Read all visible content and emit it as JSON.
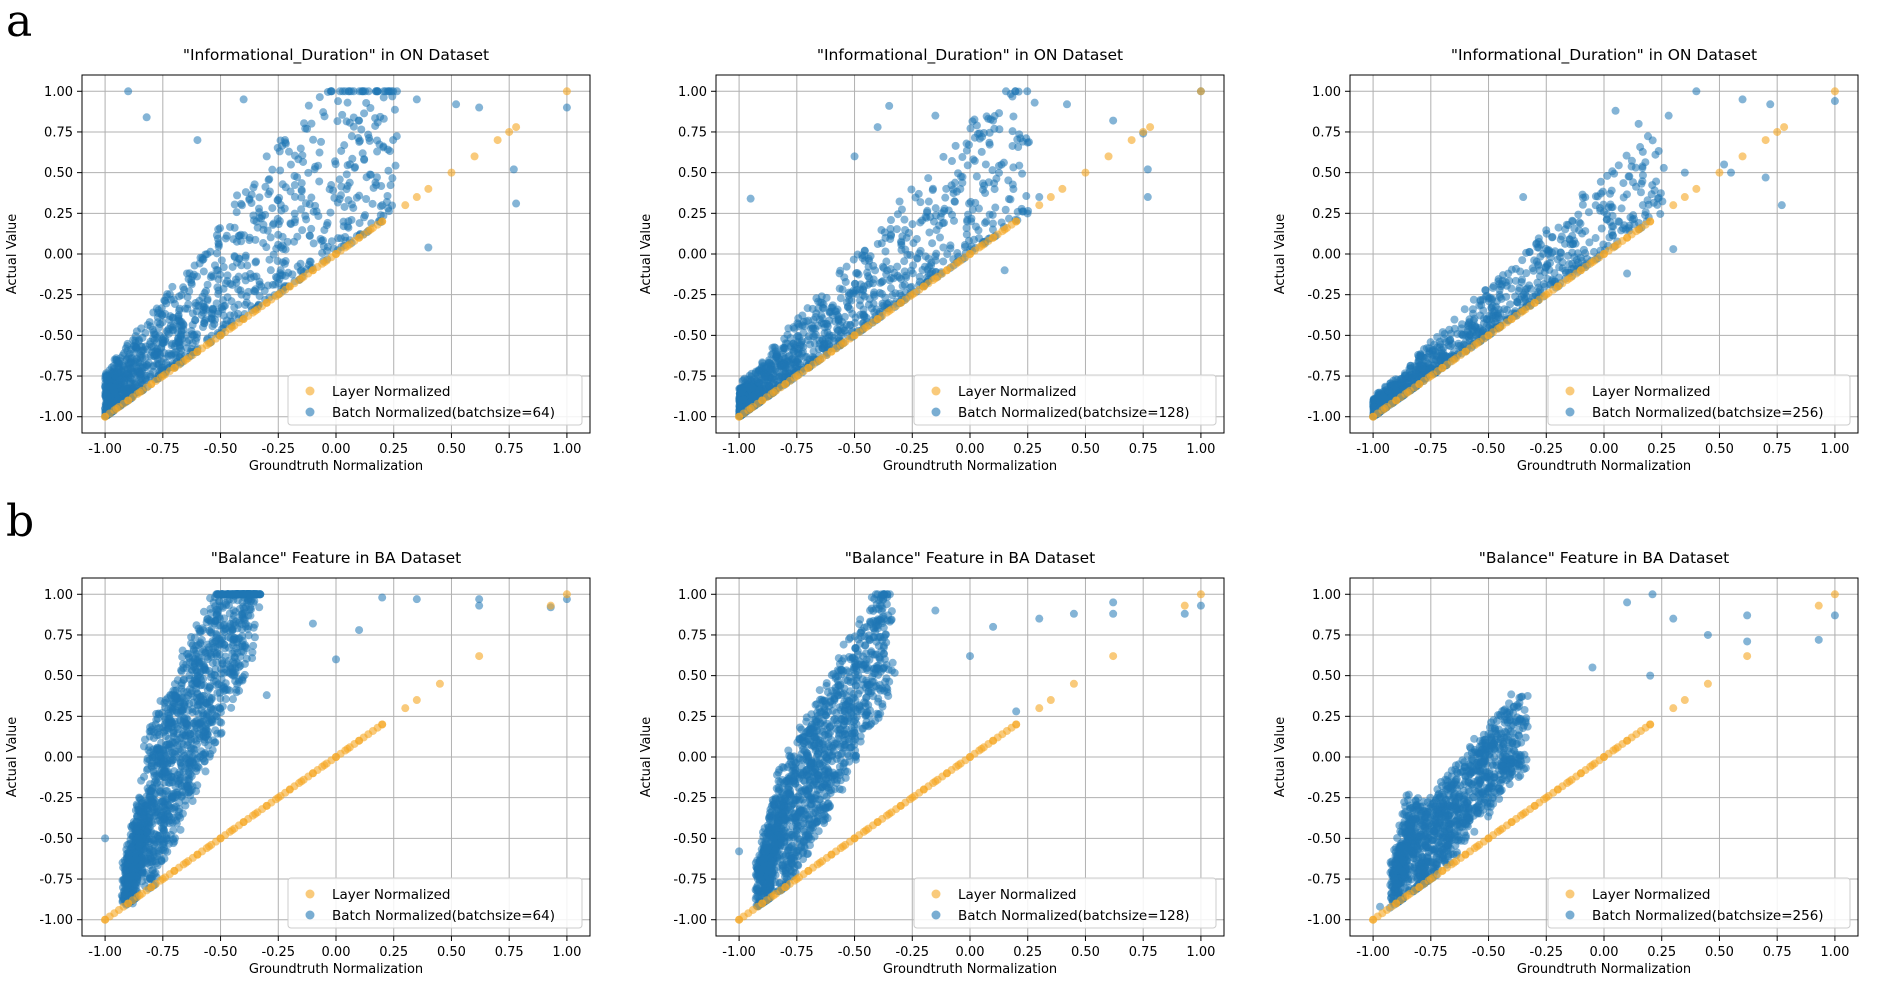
{
  "panel_labels": [
    "a",
    "b"
  ],
  "colors": {
    "layer": "#f5a623",
    "batch": "#1f77b4",
    "grid": "#b0b0b0"
  },
  "chart_data": [
    {
      "type": "scatter",
      "title": "\"Informational_Duration\" in ON Dataset",
      "xlabel": "Groundtruth Normalization",
      "ylabel": "Actual Value",
      "xlim": [
        -1.1,
        1.1
      ],
      "ylim": [
        -1.1,
        1.1
      ],
      "xticks": [
        "-1.00",
        "-0.75",
        "-0.50",
        "-0.25",
        "0.00",
        "0.25",
        "0.50",
        "0.75",
        "1.00"
      ],
      "yticks": [
        "-1.00",
        "-0.75",
        "-0.50",
        "-0.25",
        "0.00",
        "0.25",
        "0.50",
        "0.75",
        "1.00"
      ],
      "grid": true,
      "legend_position": "lower-right",
      "series": [
        {
          "name": "Layer Normalized",
          "kind": "identity",
          "x": [
            -1.0,
            -0.95,
            -0.9,
            -0.85,
            -0.8,
            -0.75,
            -0.7,
            -0.65,
            -0.6,
            -0.55,
            -0.5,
            -0.45,
            -0.4,
            -0.35,
            -0.3,
            -0.25,
            -0.2,
            -0.15,
            -0.1,
            -0.05,
            0.0,
            0.05,
            0.1,
            0.15,
            0.2,
            0.3,
            0.35,
            0.4,
            0.5,
            0.6,
            0.7,
            0.75,
            0.78,
            1.0
          ]
        },
        {
          "name": "Batch Normalized(batchsize=64)",
          "kind": "cloud",
          "spread": 1.0,
          "n": 1300,
          "seed": 11,
          "outliers": [
            [
              -0.9,
              1.0
            ],
            [
              -0.82,
              0.84
            ],
            [
              -0.6,
              0.7
            ],
            [
              -0.4,
              0.95
            ],
            [
              0.05,
              0.93
            ],
            [
              0.1,
              0.82
            ],
            [
              0.35,
              0.95
            ],
            [
              0.52,
              0.92
            ],
            [
              0.62,
              0.9
            ],
            [
              0.77,
              0.52
            ],
            [
              0.78,
              0.31
            ],
            [
              0.4,
              0.04
            ],
            [
              1.0,
              0.9
            ],
            [
              0.2,
              0.3
            ],
            [
              -0.3,
              0.6
            ]
          ]
        }
      ]
    },
    {
      "type": "scatter",
      "title": "\"Informational_Duration\" in ON Dataset",
      "xlabel": "Groundtruth Normalization",
      "ylabel": "Actual Value",
      "xlim": [
        -1.1,
        1.1
      ],
      "ylim": [
        -1.1,
        1.1
      ],
      "xticks": [
        "-1.00",
        "-0.75",
        "-0.50",
        "-0.25",
        "0.00",
        "0.25",
        "0.50",
        "0.75",
        "1.00"
      ],
      "yticks": [
        "-1.00",
        "-0.75",
        "-0.50",
        "-0.25",
        "0.00",
        "0.25",
        "0.50",
        "0.75",
        "1.00"
      ],
      "grid": true,
      "legend_position": "lower-right",
      "series": [
        {
          "name": "Layer Normalized",
          "kind": "identity",
          "x": [
            -1.0,
            -0.95,
            -0.9,
            -0.85,
            -0.8,
            -0.75,
            -0.7,
            -0.65,
            -0.6,
            -0.55,
            -0.5,
            -0.45,
            -0.4,
            -0.35,
            -0.3,
            -0.25,
            -0.2,
            -0.15,
            -0.1,
            -0.05,
            0.0,
            0.05,
            0.1,
            0.15,
            0.2,
            0.3,
            0.35,
            0.4,
            0.5,
            0.6,
            0.7,
            0.75,
            0.78,
            1.0
          ]
        },
        {
          "name": "Batch Normalized(batchsize=128)",
          "kind": "cloud",
          "spread": 0.7,
          "n": 1200,
          "seed": 23,
          "outliers": [
            [
              -0.35,
              0.91
            ],
            [
              -0.4,
              0.78
            ],
            [
              -0.15,
              0.85
            ],
            [
              0.1,
              0.82
            ],
            [
              0.28,
              0.93
            ],
            [
              0.42,
              0.92
            ],
            [
              0.62,
              0.82
            ],
            [
              0.75,
              0.74
            ],
            [
              0.77,
              0.52
            ],
            [
              0.77,
              0.35
            ],
            [
              1.0,
              1.0
            ],
            [
              -0.95,
              0.34
            ],
            [
              0.15,
              -0.1
            ],
            [
              0.3,
              0.35
            ],
            [
              -0.5,
              0.6
            ]
          ]
        }
      ]
    },
    {
      "type": "scatter",
      "title": "\"Informational_Duration\" in ON Dataset",
      "xlabel": "Groundtruth Normalization",
      "ylabel": "Actual Value",
      "xlim": [
        -1.1,
        1.1
      ],
      "ylim": [
        -1.1,
        1.1
      ],
      "xticks": [
        "-1.00",
        "-0.75",
        "-0.50",
        "-0.25",
        "0.00",
        "0.25",
        "0.50",
        "0.75",
        "1.00"
      ],
      "yticks": [
        "-1.00",
        "-0.75",
        "-0.50",
        "-0.25",
        "0.00",
        "0.25",
        "0.50",
        "0.75",
        "1.00"
      ],
      "grid": true,
      "legend_position": "lower-right",
      "series": [
        {
          "name": "Layer Normalized",
          "kind": "identity",
          "x": [
            -1.0,
            -0.95,
            -0.9,
            -0.85,
            -0.8,
            -0.75,
            -0.7,
            -0.65,
            -0.6,
            -0.55,
            -0.5,
            -0.45,
            -0.4,
            -0.35,
            -0.3,
            -0.25,
            -0.2,
            -0.15,
            -0.1,
            -0.05,
            0.0,
            0.05,
            0.1,
            0.15,
            0.2,
            0.3,
            0.35,
            0.4,
            0.5,
            0.6,
            0.7,
            0.75,
            0.78,
            1.0
          ]
        },
        {
          "name": "Batch Normalized(batchsize=256)",
          "kind": "cloud",
          "spread": 0.42,
          "n": 1100,
          "seed": 37,
          "outliers": [
            [
              0.4,
              1.0
            ],
            [
              0.6,
              0.95
            ],
            [
              0.72,
              0.92
            ],
            [
              0.52,
              0.55
            ],
            [
              0.7,
              0.47
            ],
            [
              0.77,
              0.3
            ],
            [
              0.28,
              0.85
            ],
            [
              0.05,
              0.88
            ],
            [
              0.15,
              0.8
            ],
            [
              0.35,
              0.5
            ],
            [
              0.3,
              0.03
            ],
            [
              0.1,
              -0.12
            ],
            [
              1.0,
              0.94
            ],
            [
              -0.35,
              0.35
            ],
            [
              0.55,
              0.5
            ]
          ]
        }
      ]
    },
    {
      "type": "scatter",
      "title": "\"Balance\" Feature in BA Dataset",
      "xlabel": "Groundtruth Normalization",
      "ylabel": "Actual Value",
      "xlim": [
        -1.1,
        1.1
      ],
      "ylim": [
        -1.1,
        1.1
      ],
      "xticks": [
        "-1.00",
        "-0.75",
        "-0.50",
        "-0.25",
        "0.00",
        "0.25",
        "0.50",
        "0.75",
        "1.00"
      ],
      "yticks": [
        "-1.00",
        "-0.75",
        "-0.50",
        "-0.25",
        "0.00",
        "0.25",
        "0.50",
        "0.75",
        "1.00"
      ],
      "grid": true,
      "legend_position": "lower-right",
      "series": [
        {
          "name": "Layer Normalized",
          "kind": "identity",
          "x": [
            -1.0,
            -0.9,
            -0.85,
            -0.8,
            -0.75,
            -0.7,
            -0.65,
            -0.6,
            -0.55,
            -0.5,
            -0.45,
            -0.4,
            -0.35,
            -0.3,
            -0.25,
            -0.2,
            -0.15,
            -0.1,
            -0.05,
            0.0,
            0.05,
            0.1,
            0.2,
            0.3,
            0.35,
            0.45,
            0.62,
            0.93,
            1.0
          ]
        },
        {
          "name": "Batch Normalized(batchsize=64)",
          "kind": "plume",
          "offset": 1.05,
          "n": 1600,
          "seed": 51,
          "outliers": [
            [
              -1.0,
              -0.5
            ],
            [
              -0.88,
              -0.9
            ],
            [
              0.35,
              0.97
            ],
            [
              0.62,
              0.97
            ],
            [
              0.62,
              0.93
            ],
            [
              0.93,
              0.92
            ],
            [
              1.0,
              0.97
            ],
            [
              0.2,
              0.98
            ],
            [
              0.1,
              0.78
            ],
            [
              -0.3,
              0.38
            ],
            [
              -0.1,
              0.82
            ],
            [
              0.0,
              0.6
            ]
          ]
        }
      ]
    },
    {
      "type": "scatter",
      "title": "\"Balance\" Feature in BA Dataset",
      "xlabel": "Groundtruth Normalization",
      "ylabel": "Actual Value",
      "xlim": [
        -1.1,
        1.1
      ],
      "ylim": [
        -1.1,
        1.1
      ],
      "xticks": [
        "-1.00",
        "-0.75",
        "-0.50",
        "-0.25",
        "0.00",
        "0.25",
        "0.50",
        "0.75",
        "1.00"
      ],
      "yticks": [
        "-1.00",
        "-0.75",
        "-0.50",
        "-0.25",
        "0.00",
        "0.25",
        "0.50",
        "0.75",
        "1.00"
      ],
      "grid": true,
      "legend_position": "lower-right",
      "series": [
        {
          "name": "Layer Normalized",
          "kind": "identity",
          "x": [
            -1.0,
            -0.9,
            -0.85,
            -0.8,
            -0.75,
            -0.7,
            -0.65,
            -0.6,
            -0.55,
            -0.5,
            -0.45,
            -0.4,
            -0.35,
            -0.3,
            -0.25,
            -0.2,
            -0.15,
            -0.1,
            -0.05,
            0.0,
            0.05,
            0.1,
            0.2,
            0.3,
            0.35,
            0.45,
            0.62,
            0.93,
            1.0
          ]
        },
        {
          "name": "Batch Normalized(batchsize=128)",
          "kind": "plume",
          "offset": 0.85,
          "n": 1400,
          "seed": 67,
          "outliers": [
            [
              -1.0,
              -0.58
            ],
            [
              0.62,
              0.95
            ],
            [
              0.62,
              0.88
            ],
            [
              0.93,
              0.88
            ],
            [
              1.0,
              0.93
            ],
            [
              0.45,
              0.88
            ],
            [
              0.3,
              0.85
            ],
            [
              0.1,
              0.8
            ],
            [
              0.0,
              0.62
            ],
            [
              0.2,
              0.28
            ],
            [
              -0.15,
              0.9
            ]
          ]
        }
      ]
    },
    {
      "type": "scatter",
      "title": "\"Balance\" Feature in BA Dataset",
      "xlabel": "Groundtruth Normalization",
      "ylabel": "Actual Value",
      "xlim": [
        -1.1,
        1.1
      ],
      "ylim": [
        -1.1,
        1.1
      ],
      "xticks": [
        "-1.00",
        "-0.75",
        "-0.50",
        "-0.25",
        "0.00",
        "0.25",
        "0.50",
        "0.75",
        "1.00"
      ],
      "yticks": [
        "-1.00",
        "-0.75",
        "-0.50",
        "-0.25",
        "0.00",
        "0.25",
        "0.50",
        "0.75",
        "1.00"
      ],
      "grid": true,
      "legend_position": "lower-right",
      "series": [
        {
          "name": "Layer Normalized",
          "kind": "identity",
          "x": [
            -1.0,
            -0.9,
            -0.85,
            -0.8,
            -0.75,
            -0.7,
            -0.65,
            -0.6,
            -0.55,
            -0.5,
            -0.45,
            -0.4,
            -0.35,
            -0.3,
            -0.25,
            -0.2,
            -0.15,
            -0.1,
            -0.05,
            0.0,
            0.05,
            0.1,
            0.2,
            0.3,
            0.35,
            0.45,
            0.62,
            0.93,
            1.0
          ]
        },
        {
          "name": "Batch Normalized(batchsize=256)",
          "kind": "plume",
          "offset": 0.55,
          "n": 1200,
          "seed": 83,
          "outliers": [
            [
              0.21,
              1.0
            ],
            [
              0.62,
              0.87
            ],
            [
              0.62,
              0.71
            ],
            [
              0.93,
              0.72
            ],
            [
              1.0,
              0.87
            ],
            [
              0.45,
              0.75
            ],
            [
              0.3,
              0.85
            ],
            [
              0.1,
              0.95
            ],
            [
              -0.05,
              0.55
            ],
            [
              0.2,
              0.5
            ],
            [
              -0.97,
              -0.92
            ]
          ]
        }
      ]
    }
  ]
}
